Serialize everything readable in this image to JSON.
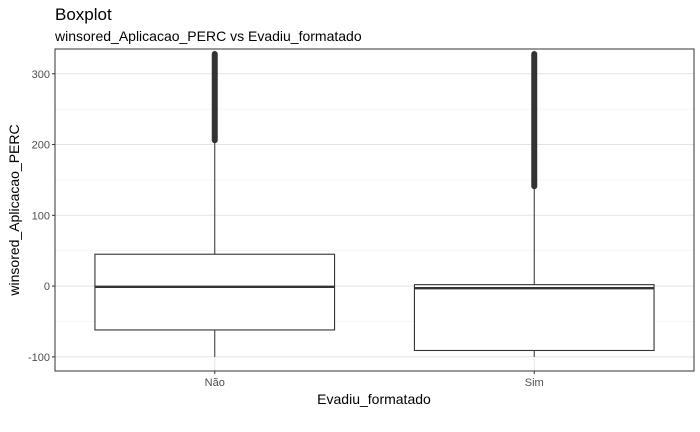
{
  "chart_data": {
    "type": "boxplot",
    "title": "Boxplot",
    "subtitle": "winsored_Aplicacao_PERC vs Evadiu_formatado",
    "xlabel": "Evadiu_formatado",
    "ylabel": "winsored_Aplicacao_PERC",
    "categories": [
      "Não",
      "Sim"
    ],
    "ylim": [
      -120,
      335
    ],
    "yticks": [
      -100,
      0,
      100,
      200,
      300
    ],
    "grid": true,
    "boxes": [
      {
        "category": "Não",
        "whisker_low": -100,
        "q1": -62,
        "median": -1,
        "q3": 45,
        "whisker_high": 206,
        "outliers_from": 206,
        "outliers_to": 328
      },
      {
        "category": "Sim",
        "whisker_low": -100,
        "q1": -91,
        "median": -3,
        "q3": 2,
        "whisker_high": 141,
        "outliers_from": 141,
        "outliers_to": 328
      }
    ]
  }
}
